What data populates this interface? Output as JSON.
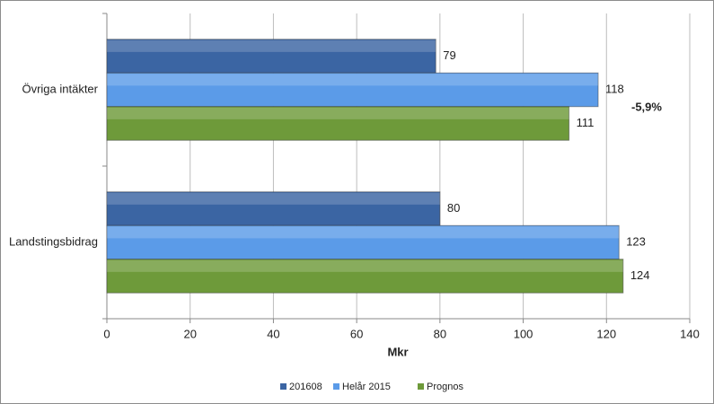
{
  "chart_data": {
    "type": "barh",
    "xlabel": "Mkr",
    "annotation": "-5,9%",
    "categories": [
      "Övriga intäkter",
      "Landstingsbidrag"
    ],
    "series": [
      {
        "name": "201608",
        "color": "#3b65a3",
        "values": [
          79,
          80
        ]
      },
      {
        "name": "Helår 2015",
        "color": "#5b9be8",
        "values": [
          118,
          123
        ]
      },
      {
        "name": "Prognos",
        "color": "#6e9a3a",
        "values": [
          111,
          124
        ]
      }
    ],
    "xlim": [
      0,
      140
    ],
    "xticks": [
      0,
      20,
      40,
      60,
      80,
      100,
      120,
      140
    ],
    "grid": true,
    "legend": "bottom"
  }
}
